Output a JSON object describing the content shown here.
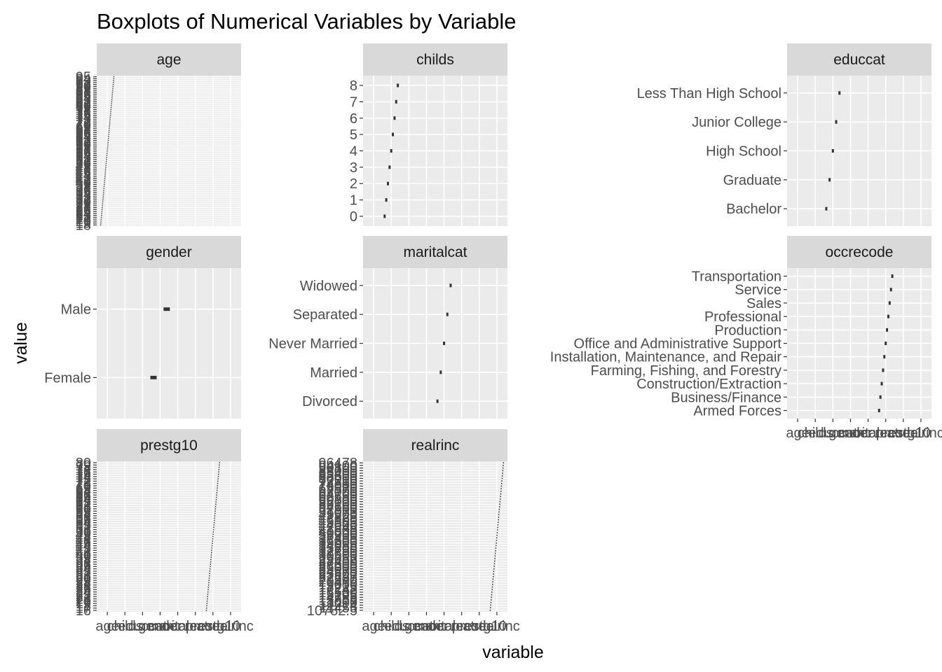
{
  "title": "Boxplots of Numerical Variables by Variable",
  "xlabel": "variable",
  "ylabel": "value",
  "chart_data": {
    "type": "box",
    "facet_by": "variable",
    "x_categories": [
      "age",
      "childs",
      "educcat",
      "gender",
      "maritalcat",
      "occrecode",
      "prestg10",
      "realrinc"
    ],
    "grid": true,
    "panels": [
      {
        "name": "age",
        "x_index": 0,
        "x_tick_labels": [],
        "y_labels": [
          "18",
          "19",
          "20",
          "21",
          "22",
          "23",
          "24",
          "25",
          "26",
          "27",
          "28",
          "29",
          "30",
          "31",
          "32",
          "33",
          "34",
          "35",
          "36",
          "37",
          "38",
          "39",
          "40",
          "41",
          "42",
          "43",
          "44",
          "45",
          "46",
          "47",
          "48",
          "49",
          "50",
          "51",
          "52",
          "53",
          "54",
          "55",
          "56",
          "57",
          "58",
          "59",
          "60",
          "61",
          "62",
          "63",
          "64",
          "65",
          "66",
          "67",
          "68",
          "69",
          "70",
          "71",
          "72",
          "73",
          "74",
          "75",
          "76",
          "77",
          "78",
          "79",
          "80",
          "81",
          "82",
          "83",
          "84",
          "85",
          "86",
          "87",
          "88",
          "89",
          "90",
          "91",
          "92",
          "93",
          "94",
          "95"
        ]
      },
      {
        "name": "childs",
        "x_index": 1,
        "x_tick_labels": [],
        "y_labels": [
          "0",
          "1",
          "2",
          "3",
          "4",
          "5",
          "6",
          "7",
          "8"
        ]
      },
      {
        "name": "educcat",
        "x_index": 2,
        "x_tick_labels": [],
        "y_labels": [
          "Bachelor",
          "Graduate",
          "High School",
          "Junior College",
          "Less Than High School"
        ]
      },
      {
        "name": "gender",
        "x_index": 3,
        "x_tick_labels": [],
        "y_labels": [
          "Female",
          "Male"
        ]
      },
      {
        "name": "maritalcat",
        "x_index": 4,
        "x_tick_labels": [],
        "y_labels": [
          "Divorced",
          "Married",
          "Never Married",
          "Separated",
          "Widowed"
        ]
      },
      {
        "name": "occrecode",
        "x_index": 5,
        "x_tick_labels": [
          "age",
          "childs",
          "educcat",
          "gender",
          "maritalcat",
          "occrecode",
          "prestg10",
          "realrinc"
        ],
        "y_labels": [
          "Armed Forces",
          "Business/Finance",
          "Construction/Extraction",
          "Farming, Fishing, and Forestry",
          "Installation, Maintenance, and Repair",
          "Office and Administrative Support",
          "Production",
          "Professional",
          "Sales",
          "Service",
          "Transportation"
        ]
      },
      {
        "name": "prestg10",
        "x_index": 6,
        "x_tick_labels": [
          "age",
          "childs",
          "educcat",
          "gender",
          "maritalcat",
          "occrecode",
          "prestg10",
          "realrinc"
        ],
        "y_labels": [
          "16",
          "17",
          "18",
          "19",
          "20",
          "21",
          "22",
          "23",
          "24",
          "25",
          "26",
          "27",
          "28",
          "29",
          "30",
          "31",
          "32",
          "33",
          "34",
          "35",
          "36",
          "37",
          "38",
          "39",
          "40",
          "41",
          "42",
          "43",
          "44",
          "45",
          "46",
          "47",
          "48",
          "49",
          "50",
          "51",
          "52",
          "53",
          "54",
          "55",
          "56",
          "57",
          "58",
          "59",
          "60",
          "61",
          "62",
          "63",
          "64",
          "65",
          "66",
          "67",
          "68",
          "69",
          "70",
          "71",
          "72",
          "73",
          "74",
          "75",
          "76",
          "77",
          "78",
          "79",
          "80"
        ]
      },
      {
        "name": "realrinc",
        "x_index": 7,
        "x_tick_labels": [
          "age",
          "childs",
          "educcat",
          "gender",
          "maritalcat",
          "occrecode",
          "prestg10",
          "realrinc"
        ],
        "y_labels": [
          "10782.5",
          "11455",
          "12214",
          "13000",
          "13859",
          "14785",
          "15105",
          "16500",
          "17242",
          "18225",
          "19000",
          "20470",
          "21500",
          "22527",
          "23500",
          "24570",
          "25000",
          "26000",
          "27300",
          "28400",
          "29652",
          "30500",
          "31600",
          "32790",
          "33800",
          "34086",
          "35000",
          "36200",
          "37495",
          "38900",
          "40000",
          "41600",
          "42649",
          "44000",
          "45505",
          "46800",
          "47825",
          "49500",
          "51073",
          "52800",
          "54660",
          "56100",
          "58000",
          "60300",
          "62690",
          "64700",
          "67000",
          "69570",
          "72000",
          "74500",
          "77310",
          "80000",
          "82600",
          "85400",
          "88000",
          "90800",
          "94100",
          "96478"
        ]
      }
    ]
  }
}
